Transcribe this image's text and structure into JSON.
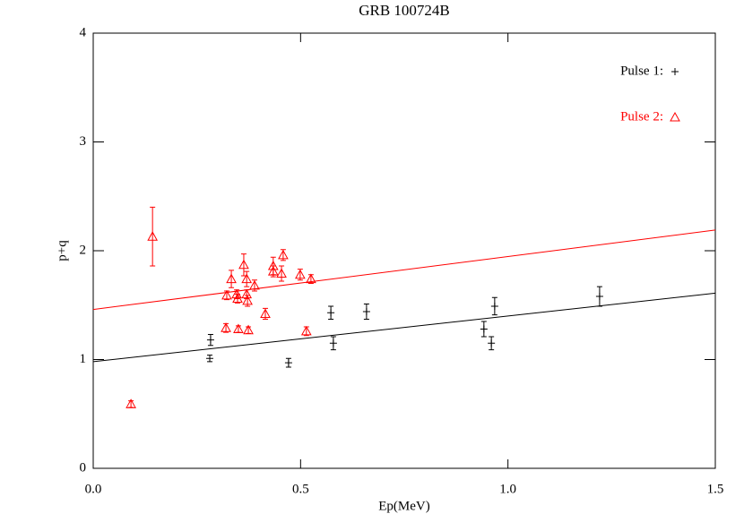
{
  "chart_data": {
    "type": "scatter",
    "title": "GRB 100724B",
    "x_label": "Ep(MeV)",
    "y_label": "p+q",
    "xlim": [
      0,
      1.5
    ],
    "ylim": [
      0,
      4
    ],
    "xticks": [
      {
        "value": 0,
        "label": "0.0"
      },
      0.5,
      {
        "value": 1,
        "label": "1.0"
      },
      1.5
    ],
    "yticks": [
      0,
      1,
      2,
      3,
      4
    ],
    "legend": "top-right",
    "series": [
      {
        "name": "Pulse 1:",
        "color": "#000000",
        "marker": "plus",
        "x": [
          0.283,
          0.281,
          0.471,
          0.573,
          0.579,
          0.659,
          0.942,
          0.96,
          0.968,
          1.221
        ],
        "values": [
          1.18,
          1.01,
          0.97,
          1.43,
          1.15,
          1.44,
          1.28,
          1.15,
          1.49,
          1.58
        ],
        "errors": [
          0.05,
          0.03,
          0.04,
          0.06,
          0.06,
          0.07,
          0.07,
          0.06,
          0.08,
          0.09
        ]
      },
      {
        "name": "Pulse 2:",
        "color": "#ff0000",
        "marker": "triangle",
        "x": [
          0.091,
          0.143,
          0.32,
          0.322,
          0.333,
          0.346,
          0.348,
          0.35,
          0.363,
          0.37,
          0.37,
          0.372,
          0.374,
          0.389,
          0.415,
          0.434,
          0.434,
          0.454,
          0.458,
          0.499,
          0.514,
          0.525
        ],
        "values": [
          0.59,
          2.13,
          1.29,
          1.59,
          1.74,
          1.6,
          1.56,
          1.28,
          1.87,
          1.74,
          1.6,
          1.54,
          1.27,
          1.68,
          1.42,
          1.86,
          1.81,
          1.79,
          1.96,
          1.78,
          1.26,
          1.74
        ],
        "errors": [
          0.03,
          0.27,
          0.04,
          0.04,
          0.08,
          0.04,
          0.04,
          0.03,
          0.1,
          0.07,
          0.04,
          0.05,
          0.03,
          0.05,
          0.05,
          0.08,
          0.05,
          0.07,
          0.05,
          0.05,
          0.04,
          0.04
        ]
      }
    ],
    "fits": [
      {
        "color": "#000000",
        "x": [
          0,
          1.5
        ],
        "values": [
          0.98,
          1.61
        ]
      },
      {
        "color": "#ff0000",
        "x": [
          0,
          1.5
        ],
        "values": [
          1.46,
          2.19
        ]
      }
    ]
  }
}
